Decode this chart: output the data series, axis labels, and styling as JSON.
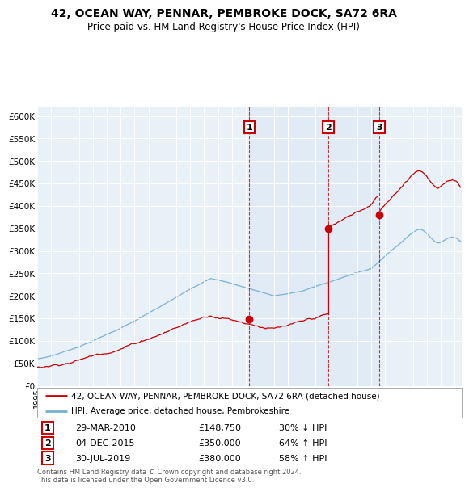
{
  "title1": "42, OCEAN WAY, PENNAR, PEMBROKE DOCK, SA72 6RA",
  "title2": "Price paid vs. HM Land Registry's House Price Index (HPI)",
  "red_label": "42, OCEAN WAY, PENNAR, PEMBROKE DOCK, SA72 6RA (detached house)",
  "blue_label": "HPI: Average price, detached house, Pembrokeshire",
  "transactions": [
    {
      "num": 1,
      "date": "29-MAR-2010",
      "price": "£148,750",
      "change": "30% ↓ HPI",
      "year": 2010.25,
      "price_val": 148750
    },
    {
      "num": 2,
      "date": "04-DEC-2015",
      "price": "£350,000",
      "change": "64% ↑ HPI",
      "year": 2015.92,
      "price_val": 350000
    },
    {
      "num": 3,
      "date": "30-JUL-2019",
      "price": "£380,000",
      "change": "58% ↑ HPI",
      "year": 2019.58,
      "price_val": 380000
    }
  ],
  "footer": "Contains HM Land Registry data © Crown copyright and database right 2024.\nThis data is licensed under the Open Government Licence v3.0.",
  "red_color": "#cc0000",
  "blue_color": "#7ab0d4",
  "shade_color": "#dce8f5",
  "ylim_max": 620000,
  "yticks_k": [
    0,
    50,
    100,
    150,
    200,
    250,
    300,
    350,
    400,
    450,
    500,
    550,
    600
  ],
  "xmin": 1995,
  "xmax": 2025.5
}
